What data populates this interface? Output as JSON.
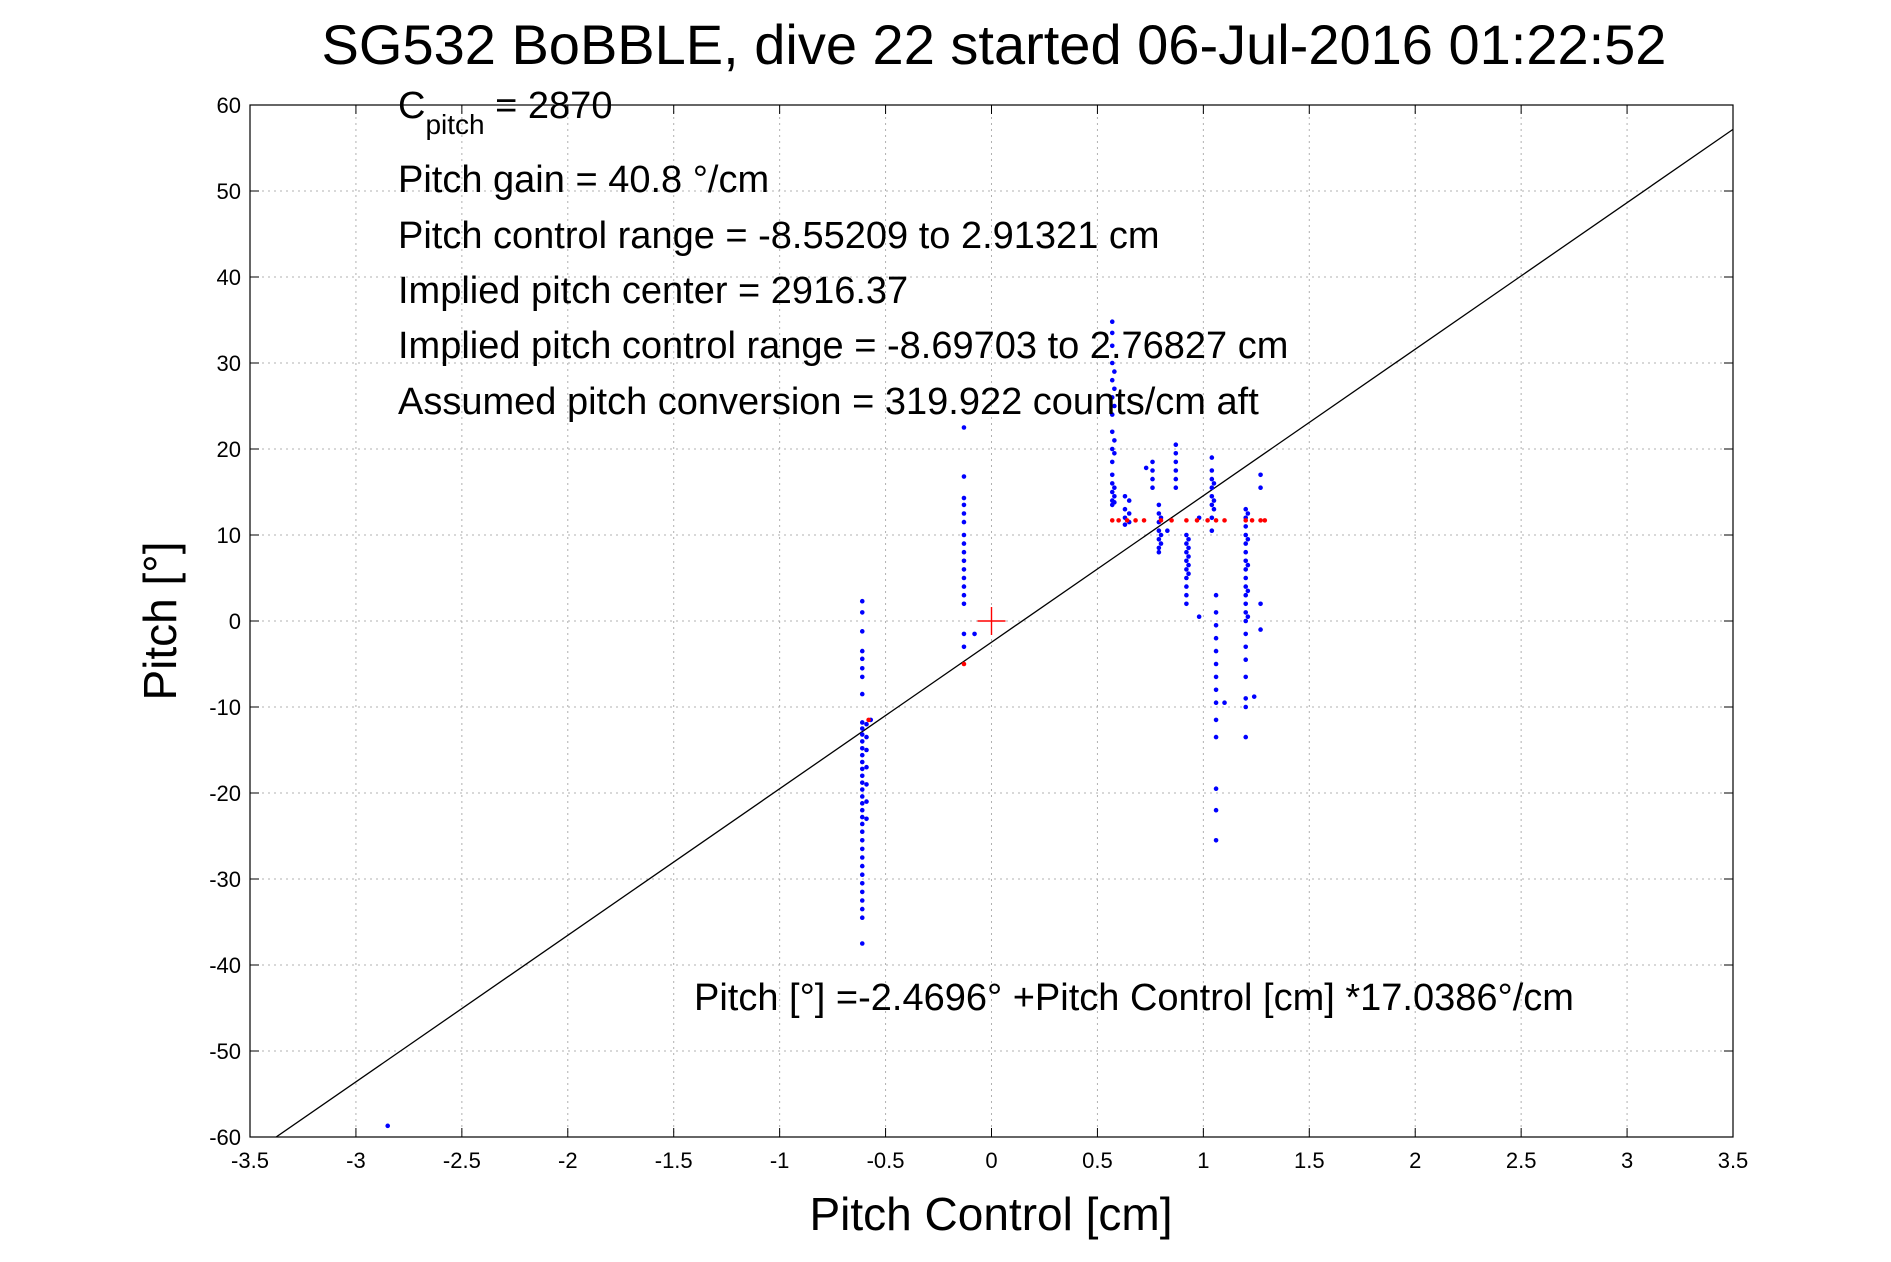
{
  "chart_data": {
    "type": "scatter",
    "title": "SG532 BoBBLE, dive 22 started 06-Jul-2016 01:22:52",
    "xlabel": "Pitch Control [cm]",
    "ylabel": "Pitch [°]",
    "xlim": [
      -3.5,
      3.5
    ],
    "ylim": [
      -60,
      60
    ],
    "xticks": [
      -3.5,
      -3,
      -2.5,
      -2,
      -1.5,
      -1,
      -0.5,
      0,
      0.5,
      1,
      1.5,
      2,
      2.5,
      3,
      3.5
    ],
    "xtick_labels": [
      "-3.5",
      "-3",
      "-2.5",
      "-2",
      "-1.5",
      "-1",
      "-0.5",
      "0",
      "0.5",
      "1",
      "1.5",
      "2",
      "2.5",
      "3",
      "3.5"
    ],
    "yticks": [
      -60,
      -50,
      -40,
      -30,
      -20,
      -10,
      0,
      10,
      20,
      30,
      40,
      50,
      60
    ],
    "ytick_labels": [
      "-60",
      "-50",
      "-40",
      "-30",
      "-20",
      "-10",
      "0",
      "10",
      "20",
      "30",
      "40",
      "50",
      "60"
    ],
    "grid": true,
    "annotations": {
      "c_pitch_main": "C",
      "c_pitch_sub": "pitch",
      "c_pitch_value": " = 2870",
      "pitch_gain": "Pitch gain = 40.8 °/cm",
      "control_range": "Pitch control range = -8.55209 to 2.91321 cm",
      "implied_center": "Implied pitch center = 2916.37",
      "implied_range": "Implied pitch control range = -8.69703 to 2.76827 cm",
      "conversion": "Assumed pitch conversion = 319.922 counts/cm aft",
      "fit_equation": "Pitch [°] =-2.4696° +Pitch Control [cm] *17.0386°/cm"
    },
    "fit_line": {
      "intercept": -2.4696,
      "slope": 17.0386,
      "color": "#000000"
    },
    "center_marker": {
      "x": 0,
      "y": 0,
      "color": "#ff0000"
    },
    "series": [
      {
        "color": "#0000ff",
        "points": [
          [
            -2.85,
            -58.7
          ],
          [
            -0.61,
            2.3
          ],
          [
            -0.61,
            1.0
          ],
          [
            -0.61,
            -1.2
          ],
          [
            -0.61,
            -3.5
          ],
          [
            -0.61,
            -4.4
          ],
          [
            -0.61,
            -5.5
          ],
          [
            -0.61,
            -6.5
          ],
          [
            -0.61,
            -8.5
          ],
          [
            -0.61,
            -11.8
          ],
          [
            -0.61,
            -12.5
          ],
          [
            -0.61,
            -13.2
          ],
          [
            -0.61,
            -14.0
          ],
          [
            -0.61,
            -14.8
          ],
          [
            -0.61,
            -15.6
          ],
          [
            -0.61,
            -16.4
          ],
          [
            -0.61,
            -17.2
          ],
          [
            -0.61,
            -18.0
          ],
          [
            -0.61,
            -18.8
          ],
          [
            -0.61,
            -19.6
          ],
          [
            -0.61,
            -20.4
          ],
          [
            -0.61,
            -21.2
          ],
          [
            -0.61,
            -22.0
          ],
          [
            -0.61,
            -22.8
          ],
          [
            -0.61,
            -23.6
          ],
          [
            -0.61,
            -24.5
          ],
          [
            -0.61,
            -25.5
          ],
          [
            -0.61,
            -26.5
          ],
          [
            -0.61,
            -27.5
          ],
          [
            -0.61,
            -28.5
          ],
          [
            -0.61,
            -29.5
          ],
          [
            -0.61,
            -30.5
          ],
          [
            -0.61,
            -31.5
          ],
          [
            -0.61,
            -32.5
          ],
          [
            -0.61,
            -33.5
          ],
          [
            -0.61,
            -34.5
          ],
          [
            -0.61,
            -37.5
          ],
          [
            -0.59,
            -12.0
          ],
          [
            -0.59,
            -13.5
          ],
          [
            -0.59,
            -15.0
          ],
          [
            -0.59,
            -17.0
          ],
          [
            -0.59,
            -19.0
          ],
          [
            -0.59,
            -21.0
          ],
          [
            -0.59,
            -23.0
          ],
          [
            -0.57,
            -11.5
          ],
          [
            -0.13,
            22.5
          ],
          [
            -0.13,
            16.8
          ],
          [
            -0.13,
            14.3
          ],
          [
            -0.13,
            13.5
          ],
          [
            -0.13,
            12.5
          ],
          [
            -0.13,
            11.5
          ],
          [
            -0.13,
            10.0
          ],
          [
            -0.13,
            9.0
          ],
          [
            -0.13,
            8.0
          ],
          [
            -0.13,
            7.0
          ],
          [
            -0.13,
            6.0
          ],
          [
            -0.13,
            5.0
          ],
          [
            -0.13,
            4.0
          ],
          [
            -0.13,
            3.0
          ],
          [
            -0.13,
            2.0
          ],
          [
            -0.13,
            -1.5
          ],
          [
            -0.13,
            -3.0
          ],
          [
            -0.08,
            -1.5
          ],
          [
            0.57,
            34.8
          ],
          [
            0.57,
            33.5
          ],
          [
            0.57,
            32.0
          ],
          [
            0.57,
            30.0
          ],
          [
            0.57,
            28.0
          ],
          [
            0.57,
            26.0
          ],
          [
            0.57,
            24.0
          ],
          [
            0.57,
            22.0
          ],
          [
            0.57,
            20.0
          ],
          [
            0.57,
            18.5
          ],
          [
            0.57,
            17.0
          ],
          [
            0.57,
            16.0
          ],
          [
            0.57,
            15.0
          ],
          [
            0.57,
            14.0
          ],
          [
            0.57,
            13.5
          ],
          [
            0.58,
            29.0
          ],
          [
            0.58,
            27.0
          ],
          [
            0.58,
            25.0
          ],
          [
            0.58,
            21.0
          ],
          [
            0.58,
            19.5
          ],
          [
            0.58,
            15.5
          ],
          [
            0.58,
            14.5
          ],
          [
            0.58,
            13.8
          ],
          [
            0.63,
            14.5
          ],
          [
            0.63,
            13.0
          ],
          [
            0.63,
            12.0
          ],
          [
            0.63,
            11.2
          ],
          [
            0.65,
            14.0
          ],
          [
            0.65,
            12.5
          ],
          [
            0.65,
            11.5
          ],
          [
            0.73,
            17.8
          ],
          [
            0.76,
            18.5
          ],
          [
            0.76,
            17.5
          ],
          [
            0.76,
            16.5
          ],
          [
            0.76,
            15.5
          ],
          [
            0.79,
            13.5
          ],
          [
            0.79,
            12.5
          ],
          [
            0.79,
            11.5
          ],
          [
            0.79,
            10.5
          ],
          [
            0.79,
            9.5
          ],
          [
            0.79,
            8.5
          ],
          [
            0.79,
            8.0
          ],
          [
            0.8,
            12.0
          ],
          [
            0.8,
            10.0
          ],
          [
            0.8,
            9.0
          ],
          [
            0.83,
            10.5
          ],
          [
            0.87,
            20.5
          ],
          [
            0.87,
            19.5
          ],
          [
            0.87,
            18.5
          ],
          [
            0.87,
            17.5
          ],
          [
            0.87,
            16.5
          ],
          [
            0.87,
            15.5
          ],
          [
            0.92,
            10.0
          ],
          [
            0.92,
            9.0
          ],
          [
            0.92,
            8.0
          ],
          [
            0.92,
            7.0
          ],
          [
            0.92,
            6.0
          ],
          [
            0.92,
            5.0
          ],
          [
            0.92,
            4.0
          ],
          [
            0.92,
            3.0
          ],
          [
            0.92,
            2.0
          ],
          [
            0.93,
            9.5
          ],
          [
            0.93,
            8.5
          ],
          [
            0.93,
            7.5
          ],
          [
            0.93,
            6.5
          ],
          [
            0.93,
            5.5
          ],
          [
            0.98,
            12.0
          ],
          [
            0.98,
            0.5
          ],
          [
            1.04,
            19.0
          ],
          [
            1.04,
            17.5
          ],
          [
            1.04,
            16.5
          ],
          [
            1.04,
            15.5
          ],
          [
            1.04,
            14.5
          ],
          [
            1.04,
            13.5
          ],
          [
            1.04,
            12.0
          ],
          [
            1.04,
            10.5
          ],
          [
            1.05,
            16.0
          ],
          [
            1.05,
            14.0
          ],
          [
            1.05,
            13.0
          ],
          [
            1.06,
            3.0
          ],
          [
            1.06,
            1.0
          ],
          [
            1.06,
            -0.5
          ],
          [
            1.06,
            -2.0
          ],
          [
            1.06,
            -3.5
          ],
          [
            1.06,
            -5.0
          ],
          [
            1.06,
            -6.5
          ],
          [
            1.06,
            -8.0
          ],
          [
            1.06,
            -9.5
          ],
          [
            1.06,
            -11.5
          ],
          [
            1.06,
            -13.5
          ],
          [
            1.06,
            -19.5
          ],
          [
            1.06,
            -22.0
          ],
          [
            1.06,
            -25.5
          ],
          [
            1.1,
            -9.5
          ],
          [
            1.2,
            13.0
          ],
          [
            1.2,
            12.0
          ],
          [
            1.2,
            11.0
          ],
          [
            1.2,
            10.0
          ],
          [
            1.2,
            9.0
          ],
          [
            1.2,
            8.0
          ],
          [
            1.2,
            7.0
          ],
          [
            1.2,
            6.0
          ],
          [
            1.2,
            5.0
          ],
          [
            1.2,
            4.0
          ],
          [
            1.2,
            3.0
          ],
          [
            1.2,
            2.0
          ],
          [
            1.2,
            1.0
          ],
          [
            1.2,
            0.0
          ],
          [
            1.2,
            -1.5
          ],
          [
            1.2,
            -3.0
          ],
          [
            1.2,
            -4.5
          ],
          [
            1.2,
            -6.5
          ],
          [
            1.2,
            -9.0
          ],
          [
            1.2,
            -10.0
          ],
          [
            1.2,
            -13.5
          ],
          [
            1.21,
            12.5
          ],
          [
            1.21,
            9.5
          ],
          [
            1.21,
            6.5
          ],
          [
            1.21,
            3.5
          ],
          [
            1.21,
            0.5
          ],
          [
            1.24,
            -8.8
          ],
          [
            1.27,
            17.0
          ],
          [
            1.27,
            15.5
          ],
          [
            1.27,
            2.0
          ],
          [
            1.27,
            -1.0
          ]
        ]
      },
      {
        "color": "#ff0000",
        "points": [
          [
            -0.13,
            -5.0
          ],
          [
            -0.58,
            -11.5
          ],
          [
            0.57,
            11.7
          ],
          [
            0.6,
            11.7
          ],
          [
            0.64,
            11.7
          ],
          [
            0.68,
            11.7
          ],
          [
            0.72,
            11.7
          ],
          [
            0.8,
            11.7
          ],
          [
            0.85,
            11.7
          ],
          [
            0.92,
            11.7
          ],
          [
            0.97,
            11.7
          ],
          [
            1.02,
            11.7
          ],
          [
            1.06,
            11.7
          ],
          [
            1.1,
            11.7
          ],
          [
            1.2,
            11.7
          ],
          [
            1.23,
            11.7
          ],
          [
            1.27,
            11.7
          ],
          [
            1.29,
            11.7
          ]
        ]
      }
    ]
  }
}
